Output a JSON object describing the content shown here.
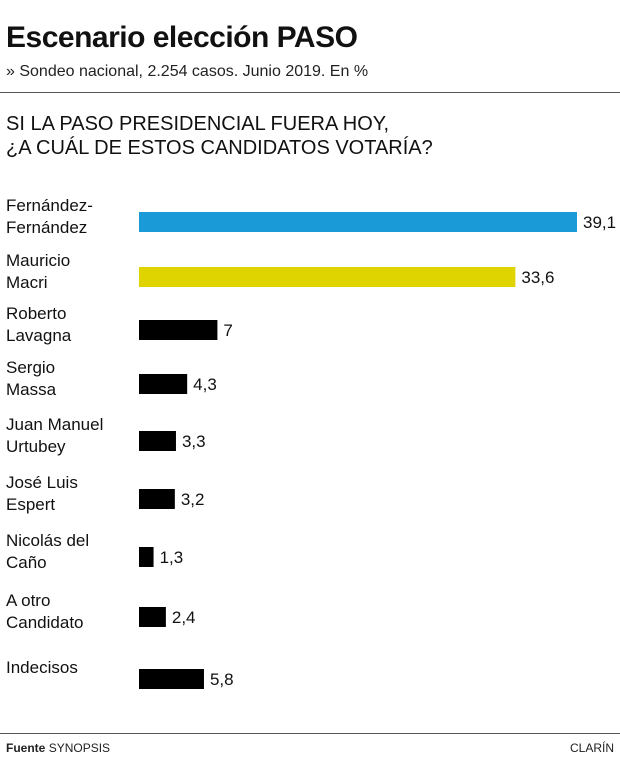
{
  "header": {
    "title": "Escenario elección PASO",
    "subtitle": "» Sondeo nacional, 2.254 casos. Junio 2019. En %"
  },
  "question": {
    "line1": "SI LA PASO PRESIDENCIAL FUERA HOY,",
    "line2": "¿A CUÁL DE ESTOS CANDIDATOS VOTARÍA?"
  },
  "chart_data": {
    "type": "bar",
    "orientation": "horizontal",
    "categories": [
      [
        "Fernández-",
        "Fernández"
      ],
      [
        "Mauricio",
        "Macri"
      ],
      [
        "Roberto",
        "Lavagna"
      ],
      [
        "Sergio",
        "Massa"
      ],
      [
        "Juan Manuel",
        "Urtubey"
      ],
      [
        "José Luis",
        "Espert"
      ],
      [
        "Nicolás del",
        "Caño"
      ],
      [
        "A otro",
        "Candidato"
      ],
      [
        "Indecisos"
      ]
    ],
    "values": [
      39.1,
      33.6,
      7,
      4.3,
      3.3,
      3.2,
      1.3,
      2.4,
      5.8
    ],
    "value_labels": [
      "39,1",
      "33,6",
      "7",
      "4,3",
      "3,3",
      "3,2",
      "1,3",
      "2,4",
      "5,8"
    ],
    "colors": [
      "#1a9ad6",
      "#e0d400",
      "#000000",
      "#000000",
      "#000000",
      "#000000",
      "#000000",
      "#000000",
      "#000000"
    ],
    "xlim": [
      0,
      39.1
    ],
    "grid": false,
    "legend": "none"
  },
  "footer": {
    "source_label": "Fuente",
    "source": "SYNOPSIS",
    "brand": "CLARÍN"
  }
}
